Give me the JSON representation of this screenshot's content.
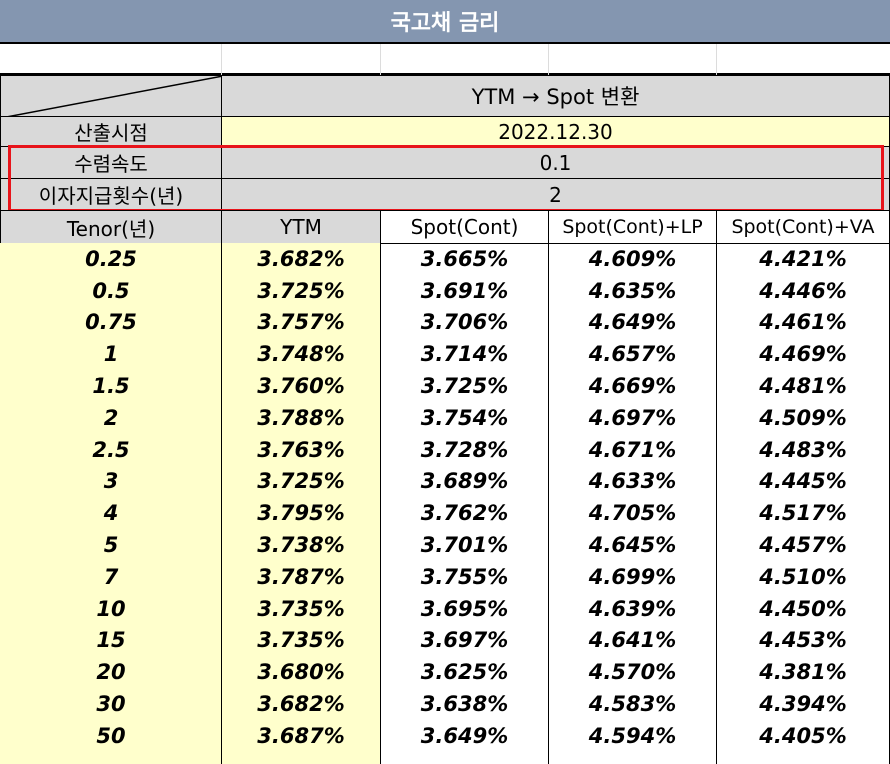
{
  "title": "국고채 금리",
  "header": {
    "conversion_label": "YTM → Spot 변환",
    "calc_date_label": "산출시점",
    "calc_date_value": "2022.12.30",
    "convergence_label": "수렴속도",
    "convergence_value": "0.1",
    "payments_label": "이자지급횟수(년)",
    "payments_value": "2"
  },
  "table": {
    "columns": [
      "Tenor(년)",
      "YTM",
      "Spot(Cont)",
      "Spot(Cont)+LP",
      "Spot(Cont)+VA"
    ],
    "rows": [
      [
        "0.25",
        "3.682%",
        "3.665%",
        "4.609%",
        "4.421%"
      ],
      [
        "0.5",
        "3.725%",
        "3.691%",
        "4.635%",
        "4.446%"
      ],
      [
        "0.75",
        "3.757%",
        "3.706%",
        "4.649%",
        "4.461%"
      ],
      [
        "1",
        "3.748%",
        "3.714%",
        "4.657%",
        "4.469%"
      ],
      [
        "1.5",
        "3.760%",
        "3.725%",
        "4.669%",
        "4.481%"
      ],
      [
        "2",
        "3.788%",
        "3.754%",
        "4.697%",
        "4.509%"
      ],
      [
        "2.5",
        "3.763%",
        "3.728%",
        "4.671%",
        "4.483%"
      ],
      [
        "3",
        "3.725%",
        "3.689%",
        "4.633%",
        "4.445%"
      ],
      [
        "4",
        "3.795%",
        "3.762%",
        "4.705%",
        "4.517%"
      ],
      [
        "5",
        "3.738%",
        "3.701%",
        "4.645%",
        "4.457%"
      ],
      [
        "7",
        "3.787%",
        "3.755%",
        "4.699%",
        "4.510%"
      ],
      [
        "10",
        "3.735%",
        "3.695%",
        "4.639%",
        "4.450%"
      ],
      [
        "15",
        "3.735%",
        "3.697%",
        "4.641%",
        "4.453%"
      ],
      [
        "20",
        "3.680%",
        "3.625%",
        "4.570%",
        "4.381%"
      ],
      [
        "30",
        "3.682%",
        "3.638%",
        "4.583%",
        "4.394%"
      ],
      [
        "50",
        "3.687%",
        "3.649%",
        "4.594%",
        "4.405%"
      ]
    ]
  },
  "colors": {
    "title_bg": "#8496b0",
    "header_gray": "#d9d9d9",
    "input_yellow": "#ffffcc",
    "highlight_red": "#e8141b"
  }
}
